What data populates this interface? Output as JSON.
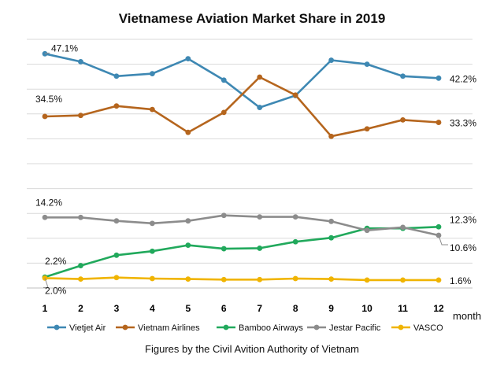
{
  "chart_data": {
    "type": "line",
    "title": "Vietnamese Aviation Market Share in 2019",
    "subtitle": "Figures by the Civil Avition Authority of Vietnam",
    "xlabel": "month",
    "ylabel": "",
    "x": [
      "1",
      "2",
      "3",
      "4",
      "5",
      "6",
      "7",
      "8",
      "9",
      "10",
      "11",
      "12"
    ],
    "ylim": [
      0,
      50
    ],
    "grid": true,
    "legend_position": "bottom",
    "series": [
      {
        "name": "Vietjet Air",
        "color": "#3e88b3",
        "values": [
          47.1,
          45.5,
          42.6,
          43.1,
          46.1,
          41.8,
          36.3,
          38.7,
          45.8,
          45.0,
          42.6,
          42.2
        ]
      },
      {
        "name": "Vietnam Airlines",
        "color": "#b5651d",
        "values": [
          34.5,
          34.7,
          36.6,
          35.9,
          31.3,
          35.3,
          42.4,
          38.8,
          30.5,
          32.0,
          33.8,
          33.3
        ]
      },
      {
        "name": "Bamboo Airways",
        "color": "#21a95c",
        "values": [
          2.2,
          4.5,
          6.6,
          7.4,
          8.6,
          7.9,
          8.0,
          9.3,
          10.1,
          12.0,
          12.0,
          12.3
        ]
      },
      {
        "name": "Jestar Pacific",
        "color": "#8c8c8c",
        "values": [
          14.2,
          14.2,
          13.5,
          13.0,
          13.5,
          14.6,
          14.3,
          14.3,
          13.4,
          11.6,
          12.2,
          10.6
        ]
      },
      {
        "name": "VASCO",
        "color": "#f0b400",
        "values": [
          2.0,
          1.8,
          2.1,
          1.9,
          1.8,
          1.7,
          1.7,
          1.9,
          1.8,
          1.6,
          1.6,
          1.6
        ]
      }
    ],
    "annotations": [
      {
        "series": 0,
        "index": 0,
        "text": "47.1%"
      },
      {
        "series": 0,
        "index": 11,
        "text": "42.2%"
      },
      {
        "series": 1,
        "index": 0,
        "text": "34.5%"
      },
      {
        "series": 1,
        "index": 11,
        "text": "33.3%"
      },
      {
        "series": 3,
        "index": 0,
        "text": "14.2%"
      },
      {
        "series": 3,
        "index": 11,
        "text": "10.6%"
      },
      {
        "series": 2,
        "index": 0,
        "text": "2.2%"
      },
      {
        "series": 2,
        "index": 11,
        "text": "12.3%"
      },
      {
        "series": 4,
        "index": 0,
        "text": "2.0%"
      },
      {
        "series": 4,
        "index": 11,
        "text": "1.6%"
      }
    ]
  }
}
